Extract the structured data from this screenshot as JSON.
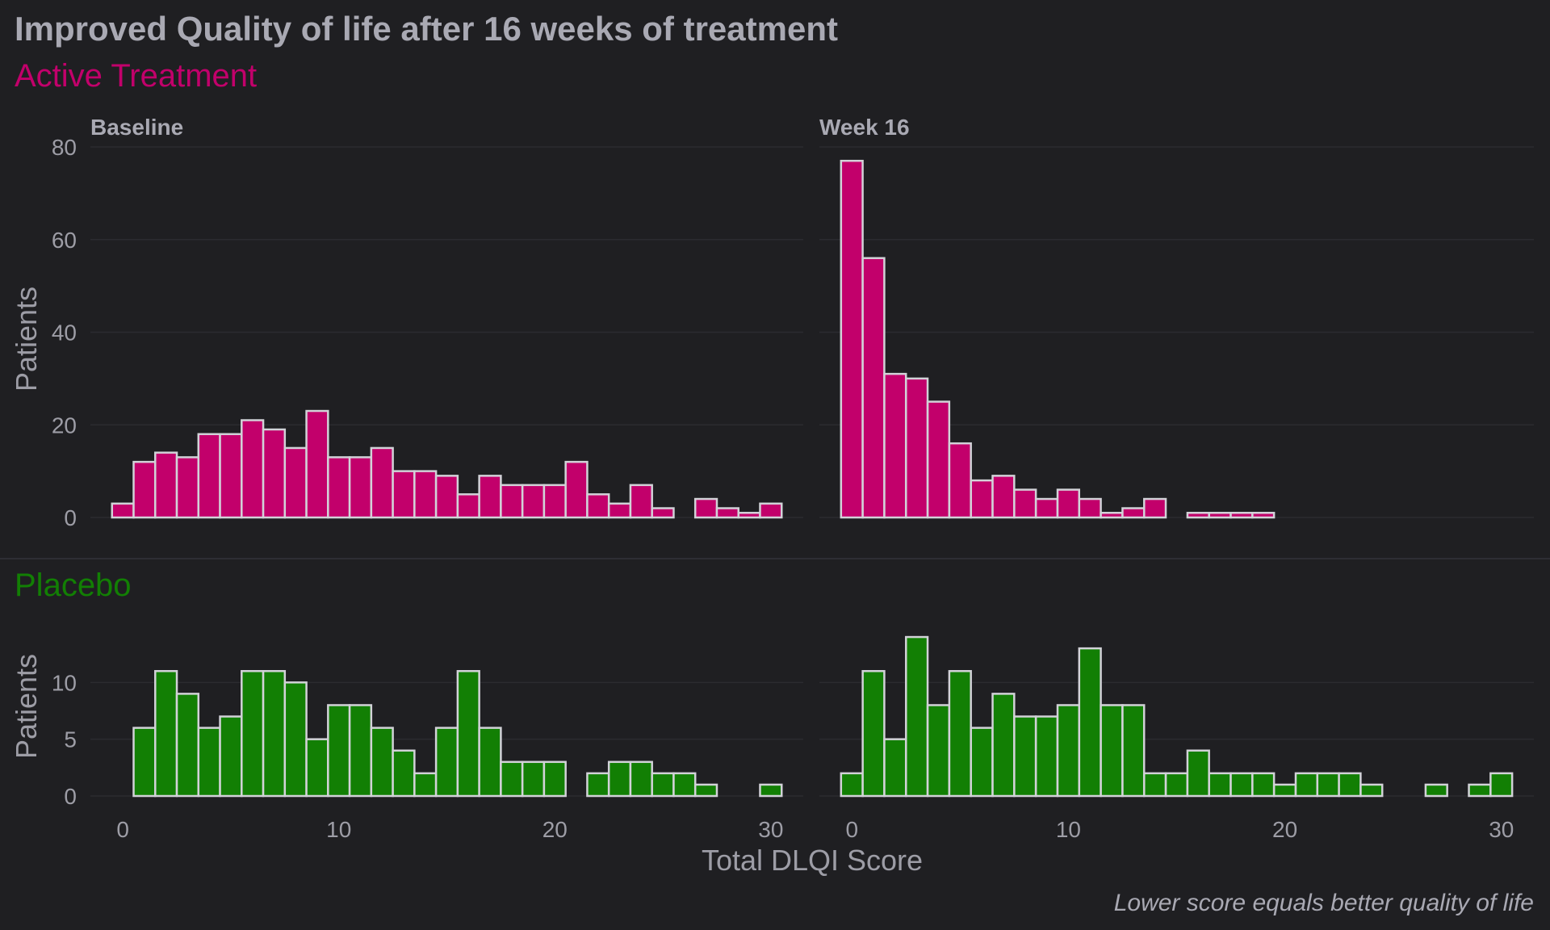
{
  "title": "Improved Quality of life after 16 weeks of treatment",
  "caption": "Lower score equals better quality of life",
  "chart_data": {
    "type": "bar",
    "histogram": true,
    "title": "Improved Quality of life after 16 weeks of treatment",
    "xlabel": "Total DLQI Score",
    "ylabel": "Patients",
    "caption": "Lower score equals better quality of life",
    "x_ticks": [
      0,
      10,
      20,
      30
    ],
    "bin_centers": [
      0,
      1,
      2,
      3,
      4,
      5,
      6,
      7,
      8,
      9,
      10,
      11,
      12,
      13,
      14,
      15,
      16,
      17,
      18,
      19,
      20,
      21,
      22,
      23,
      24,
      25,
      26,
      27,
      28,
      29,
      30
    ],
    "xlim": [
      -1.5,
      31.5
    ],
    "facets": [
      "Baseline",
      "Week 16"
    ],
    "grid": true,
    "panels": [
      {
        "group": "Active Treatment",
        "color": "#c2006b",
        "ylim": [
          0,
          80
        ],
        "y_ticks": [
          0,
          20,
          40,
          60,
          80
        ],
        "series": [
          {
            "facet": "Baseline",
            "values": [
              3,
              12,
              14,
              13,
              18,
              18,
              21,
              19,
              15,
              23,
              13,
              13,
              15,
              10,
              10,
              9,
              5,
              9,
              7,
              7,
              7,
              12,
              5,
              3,
              7,
              2,
              0,
              4,
              2,
              1,
              3
            ]
          },
          {
            "facet": "Week 16",
            "values": [
              77,
              56,
              31,
              30,
              25,
              16,
              8,
              9,
              6,
              4,
              6,
              4,
              1,
              2,
              4,
              0,
              1,
              1,
              1,
              1,
              0,
              0,
              0,
              0,
              0,
              0,
              0,
              0,
              0,
              0,
              0
            ]
          }
        ]
      },
      {
        "group": "Placebo",
        "color": "#127f04",
        "ylim": [
          0,
          15
        ],
        "y_ticks": [
          0,
          5,
          10
        ],
        "series": [
          {
            "facet": "Baseline",
            "values": [
              0,
              6,
              11,
              9,
              6,
              7,
              11,
              11,
              10,
              5,
              8,
              8,
              6,
              4,
              2,
              6,
              11,
              6,
              3,
              3,
              3,
              0,
              2,
              3,
              3,
              2,
              2,
              1,
              0,
              0,
              1
            ]
          },
          {
            "facet": "Week 16",
            "values": [
              2,
              11,
              5,
              14,
              8,
              11,
              6,
              9,
              7,
              7,
              8,
              13,
              8,
              8,
              2,
              2,
              4,
              2,
              2,
              2,
              1,
              2,
              2,
              2,
              1,
              0,
              0,
              1,
              0,
              1,
              2
            ]
          }
        ]
      }
    ]
  }
}
